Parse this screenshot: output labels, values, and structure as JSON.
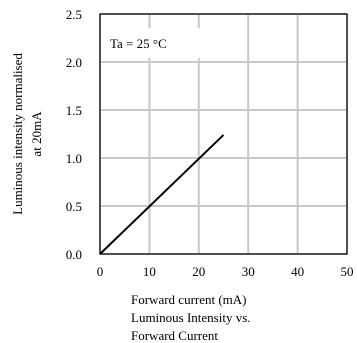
{
  "chart_data": {
    "type": "line",
    "annotation": "Ta = 25 °C",
    "xlabel": "Forward current (mA)",
    "ylabel": [
      "Luminous intensity normalised",
      "at 20mA"
    ],
    "caption": [
      "Luminous Intensity vs.",
      "Forward Current"
    ],
    "xlim": [
      0,
      50
    ],
    "ylim": [
      0,
      2.5
    ],
    "x_ticks": [
      "0",
      "10",
      "20",
      "30",
      "40",
      "50"
    ],
    "y_ticks": [
      "0.0",
      "0.5",
      "1.0",
      "1.5",
      "2.0",
      "2.5"
    ],
    "grid": true,
    "series": [
      {
        "x": [
          0,
          25
        ],
        "y": [
          0,
          1.24
        ]
      }
    ]
  }
}
